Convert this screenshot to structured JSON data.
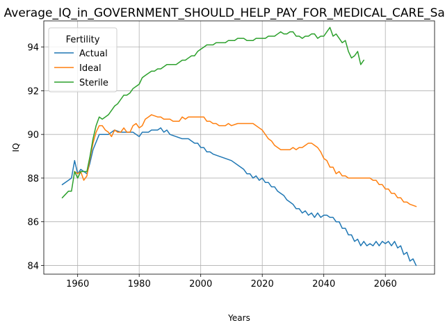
{
  "chart_data": {
    "type": "line",
    "title": "Average_IQ_in_GOVERNMENT_SHOULD_HELP_PAY_FOR_MEDICAL_CARE_Sample",
    "xlabel": "Years",
    "ylabel": "IQ",
    "xlim": [
      1949,
      2076
    ],
    "ylim": [
      83.6,
      95.2
    ],
    "xticks": [
      1960,
      1980,
      2000,
      2020,
      2040,
      2060
    ],
    "yticks": [
      84,
      86,
      88,
      90,
      92,
      94
    ],
    "grid": true,
    "legend": {
      "title": "Fertility",
      "placement": "top-left"
    },
    "series": [
      {
        "name": "Actual",
        "color": "#1f77b4",
        "points": [
          [
            1955,
            87.7
          ],
          [
            1957,
            87.9
          ],
          [
            1958,
            88.0
          ],
          [
            1959,
            88.8
          ],
          [
            1960,
            88.2
          ],
          [
            1961,
            88.4
          ],
          [
            1962,
            88.3
          ],
          [
            1963,
            88.2
          ],
          [
            1964,
            88.7
          ],
          [
            1965,
            89.3
          ],
          [
            1967,
            90.0
          ],
          [
            1969,
            90.0
          ],
          [
            1970,
            90.0
          ],
          [
            1972,
            90.2
          ],
          [
            1974,
            90.1
          ],
          [
            1976,
            90.1
          ],
          [
            1978,
            90.1
          ],
          [
            1980,
            89.9
          ],
          [
            1981,
            90.1
          ],
          [
            1983,
            90.1
          ],
          [
            1984,
            90.2
          ],
          [
            1986,
            90.2
          ],
          [
            1987,
            90.3
          ],
          [
            1988,
            90.1
          ],
          [
            1989,
            90.2
          ],
          [
            1990,
            90.0
          ],
          [
            1992,
            89.9
          ],
          [
            1994,
            89.8
          ],
          [
            1996,
            89.8
          ],
          [
            1997,
            89.7
          ],
          [
            1998,
            89.6
          ],
          [
            1999,
            89.6
          ],
          [
            2000,
            89.4
          ],
          [
            2001,
            89.4
          ],
          [
            2002,
            89.2
          ],
          [
            2003,
            89.2
          ],
          [
            2004,
            89.1
          ],
          [
            2006,
            89.0
          ],
          [
            2008,
            88.9
          ],
          [
            2010,
            88.8
          ],
          [
            2012,
            88.6
          ],
          [
            2014,
            88.4
          ],
          [
            2015,
            88.2
          ],
          [
            2016,
            88.2
          ],
          [
            2017,
            88.0
          ],
          [
            2018,
            88.1
          ],
          [
            2019,
            87.9
          ],
          [
            2020,
            88.0
          ],
          [
            2021,
            87.8
          ],
          [
            2022,
            87.8
          ],
          [
            2023,
            87.6
          ],
          [
            2024,
            87.6
          ],
          [
            2025,
            87.4
          ],
          [
            2026,
            87.3
          ],
          [
            2027,
            87.2
          ],
          [
            2028,
            87.0
          ],
          [
            2029,
            86.9
          ],
          [
            2030,
            86.8
          ],
          [
            2031,
            86.6
          ],
          [
            2032,
            86.6
          ],
          [
            2033,
            86.4
          ],
          [
            2034,
            86.5
          ],
          [
            2035,
            86.3
          ],
          [
            2036,
            86.4
          ],
          [
            2037,
            86.2
          ],
          [
            2038,
            86.4
          ],
          [
            2039,
            86.2
          ],
          [
            2040,
            86.3
          ],
          [
            2041,
            86.3
          ],
          [
            2042,
            86.2
          ],
          [
            2043,
            86.2
          ],
          [
            2044,
            86.0
          ],
          [
            2045,
            86.0
          ],
          [
            2046,
            85.7
          ],
          [
            2047,
            85.7
          ],
          [
            2048,
            85.4
          ],
          [
            2049,
            85.4
          ],
          [
            2050,
            85.1
          ],
          [
            2051,
            85.2
          ],
          [
            2052,
            84.9
          ],
          [
            2053,
            85.1
          ],
          [
            2054,
            84.9
          ],
          [
            2055,
            85.0
          ],
          [
            2056,
            84.9
          ],
          [
            2057,
            85.1
          ],
          [
            2058,
            84.9
          ],
          [
            2059,
            85.1
          ],
          [
            2060,
            85.0
          ],
          [
            2061,
            85.1
          ],
          [
            2062,
            84.9
          ],
          [
            2063,
            85.1
          ],
          [
            2064,
            84.8
          ],
          [
            2065,
            84.9
          ],
          [
            2066,
            84.5
          ],
          [
            2067,
            84.6
          ],
          [
            2068,
            84.2
          ],
          [
            2069,
            84.3
          ],
          [
            2070,
            84.0
          ]
        ]
      },
      {
        "name": "Ideal",
        "color": "#ff7f0e",
        "points": [
          [
            1959,
            88.3
          ],
          [
            1960,
            88.2
          ],
          [
            1961,
            88.3
          ],
          [
            1962,
            87.9
          ],
          [
            1963,
            88.1
          ],
          [
            1964,
            88.9
          ],
          [
            1965,
            89.6
          ],
          [
            1966,
            90.1
          ],
          [
            1967,
            90.4
          ],
          [
            1968,
            90.4
          ],
          [
            1969,
            90.2
          ],
          [
            1970,
            90.1
          ],
          [
            1971,
            89.9
          ],
          [
            1972,
            90.2
          ],
          [
            1973,
            90.1
          ],
          [
            1974,
            90.1
          ],
          [
            1975,
            90.3
          ],
          [
            1976,
            90.1
          ],
          [
            1977,
            90.1
          ],
          [
            1978,
            90.4
          ],
          [
            1979,
            90.5
          ],
          [
            1980,
            90.3
          ],
          [
            1981,
            90.4
          ],
          [
            1982,
            90.7
          ],
          [
            1983,
            90.8
          ],
          [
            1984,
            90.9
          ],
          [
            1986,
            90.8
          ],
          [
            1987,
            90.8
          ],
          [
            1988,
            90.7
          ],
          [
            1990,
            90.7
          ],
          [
            1991,
            90.6
          ],
          [
            1993,
            90.6
          ],
          [
            1994,
            90.8
          ],
          [
            1995,
            90.7
          ],
          [
            1996,
            90.8
          ],
          [
            1998,
            90.8
          ],
          [
            1999,
            90.8
          ],
          [
            2000,
            90.8
          ],
          [
            2001,
            90.8
          ],
          [
            2002,
            90.6
          ],
          [
            2003,
            90.6
          ],
          [
            2004,
            90.5
          ],
          [
            2005,
            90.5
          ],
          [
            2006,
            90.4
          ],
          [
            2008,
            90.4
          ],
          [
            2009,
            90.5
          ],
          [
            2010,
            90.4
          ],
          [
            2012,
            90.5
          ],
          [
            2014,
            90.5
          ],
          [
            2016,
            90.5
          ],
          [
            2017,
            90.5
          ],
          [
            2018,
            90.4
          ],
          [
            2019,
            90.3
          ],
          [
            2020,
            90.2
          ],
          [
            2021,
            90.0
          ],
          [
            2022,
            89.8
          ],
          [
            2023,
            89.7
          ],
          [
            2024,
            89.5
          ],
          [
            2025,
            89.4
          ],
          [
            2026,
            89.3
          ],
          [
            2028,
            89.3
          ],
          [
            2029,
            89.3
          ],
          [
            2030,
            89.4
          ],
          [
            2031,
            89.3
          ],
          [
            2032,
            89.4
          ],
          [
            2033,
            89.4
          ],
          [
            2034,
            89.5
          ],
          [
            2035,
            89.6
          ],
          [
            2036,
            89.6
          ],
          [
            2037,
            89.5
          ],
          [
            2038,
            89.4
          ],
          [
            2039,
            89.2
          ],
          [
            2040,
            88.9
          ],
          [
            2041,
            88.8
          ],
          [
            2042,
            88.5
          ],
          [
            2043,
            88.5
          ],
          [
            2044,
            88.2
          ],
          [
            2045,
            88.3
          ],
          [
            2046,
            88.1
          ],
          [
            2047,
            88.1
          ],
          [
            2048,
            88.0
          ],
          [
            2050,
            88.0
          ],
          [
            2051,
            88.0
          ],
          [
            2052,
            88.0
          ],
          [
            2054,
            88.0
          ],
          [
            2055,
            88.0
          ],
          [
            2056,
            87.9
          ],
          [
            2057,
            87.9
          ],
          [
            2058,
            87.7
          ],
          [
            2059,
            87.7
          ],
          [
            2060,
            87.5
          ],
          [
            2061,
            87.5
          ],
          [
            2062,
            87.3
          ],
          [
            2063,
            87.3
          ],
          [
            2064,
            87.1
          ],
          [
            2065,
            87.1
          ],
          [
            2066,
            86.9
          ],
          [
            2067,
            86.9
          ],
          [
            2068,
            86.8
          ],
          [
            2070,
            86.7
          ]
        ]
      },
      {
        "name": "Sterile",
        "color": "#2ca02c",
        "points": [
          [
            1955,
            87.1
          ],
          [
            1957,
            87.4
          ],
          [
            1958,
            87.4
          ],
          [
            1959,
            88.3
          ],
          [
            1960,
            88.0
          ],
          [
            1961,
            88.3
          ],
          [
            1962,
            88.3
          ],
          [
            1963,
            88.3
          ],
          [
            1964,
            89.0
          ],
          [
            1965,
            89.8
          ],
          [
            1966,
            90.4
          ],
          [
            1967,
            90.8
          ],
          [
            1968,
            90.7
          ],
          [
            1969,
            90.8
          ],
          [
            1970,
            90.9
          ],
          [
            1971,
            91.1
          ],
          [
            1972,
            91.3
          ],
          [
            1973,
            91.4
          ],
          [
            1974,
            91.6
          ],
          [
            1975,
            91.8
          ],
          [
            1976,
            91.8
          ],
          [
            1977,
            91.9
          ],
          [
            1978,
            92.1
          ],
          [
            1979,
            92.2
          ],
          [
            1980,
            92.3
          ],
          [
            1981,
            92.6
          ],
          [
            1982,
            92.7
          ],
          [
            1983,
            92.8
          ],
          [
            1984,
            92.9
          ],
          [
            1985,
            92.9
          ],
          [
            1986,
            93.0
          ],
          [
            1987,
            93.0
          ],
          [
            1988,
            93.1
          ],
          [
            1989,
            93.2
          ],
          [
            1990,
            93.2
          ],
          [
            1991,
            93.2
          ],
          [
            1992,
            93.2
          ],
          [
            1993,
            93.3
          ],
          [
            1994,
            93.4
          ],
          [
            1995,
            93.4
          ],
          [
            1996,
            93.5
          ],
          [
            1997,
            93.6
          ],
          [
            1998,
            93.6
          ],
          [
            1999,
            93.8
          ],
          [
            2000,
            93.9
          ],
          [
            2001,
            94.0
          ],
          [
            2002,
            94.1
          ],
          [
            2003,
            94.1
          ],
          [
            2004,
            94.1
          ],
          [
            2005,
            94.2
          ],
          [
            2006,
            94.2
          ],
          [
            2007,
            94.2
          ],
          [
            2008,
            94.2
          ],
          [
            2009,
            94.3
          ],
          [
            2010,
            94.3
          ],
          [
            2011,
            94.3
          ],
          [
            2012,
            94.4
          ],
          [
            2013,
            94.4
          ],
          [
            2014,
            94.4
          ],
          [
            2015,
            94.3
          ],
          [
            2016,
            94.3
          ],
          [
            2017,
            94.3
          ],
          [
            2018,
            94.4
          ],
          [
            2019,
            94.4
          ],
          [
            2020,
            94.4
          ],
          [
            2021,
            94.4
          ],
          [
            2022,
            94.5
          ],
          [
            2023,
            94.5
          ],
          [
            2024,
            94.5
          ],
          [
            2025,
            94.6
          ],
          [
            2026,
            94.7
          ],
          [
            2027,
            94.6
          ],
          [
            2028,
            94.6
          ],
          [
            2029,
            94.7
          ],
          [
            2030,
            94.7
          ],
          [
            2031,
            94.5
          ],
          [
            2032,
            94.5
          ],
          [
            2033,
            94.4
          ],
          [
            2034,
            94.5
          ],
          [
            2035,
            94.5
          ],
          [
            2036,
            94.6
          ],
          [
            2037,
            94.6
          ],
          [
            2038,
            94.4
          ],
          [
            2039,
            94.5
          ],
          [
            2040,
            94.5
          ],
          [
            2041,
            94.7
          ],
          [
            2042,
            94.9
          ],
          [
            2043,
            94.5
          ],
          [
            2044,
            94.6
          ],
          [
            2045,
            94.4
          ],
          [
            2046,
            94.2
          ],
          [
            2047,
            94.3
          ],
          [
            2048,
            93.8
          ],
          [
            2049,
            93.5
          ],
          [
            2050,
            93.6
          ],
          [
            2051,
            93.8
          ],
          [
            2052,
            93.2
          ],
          [
            2053,
            93.4
          ]
        ]
      }
    ]
  }
}
